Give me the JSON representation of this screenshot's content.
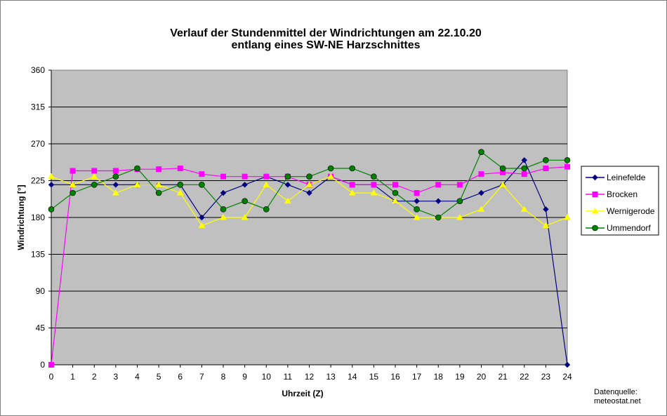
{
  "chart_data": {
    "type": "line",
    "title_lines": [
      "Verlauf der Stundenmittel der Windrichtungen am 22.10.20",
      "entlang eines SW-NE Harzschnittes"
    ],
    "xlabel": "Uhrzeit (Z)",
    "ylabel": "Windrichtung [°]",
    "x": [
      0,
      1,
      2,
      3,
      4,
      5,
      6,
      7,
      8,
      9,
      10,
      11,
      12,
      13,
      14,
      15,
      16,
      17,
      18,
      19,
      20,
      21,
      22,
      23,
      24
    ],
    "xlim": [
      0,
      24
    ],
    "ylim": [
      0,
      360
    ],
    "yticks": [
      0,
      45,
      90,
      135,
      180,
      225,
      270,
      315,
      360
    ],
    "grid": "horizontal",
    "legend_position": "right",
    "source_lines": [
      "Datenquelle:",
      "meteostat.net"
    ],
    "series": [
      {
        "name": "Leinefelde",
        "color": "#000080",
        "marker": "diamond",
        "values": [
          220,
          220,
          220,
          220,
          220,
          220,
          220,
          180,
          210,
          220,
          230,
          220,
          210,
          230,
          220,
          220,
          200,
          200,
          200,
          200,
          210,
          220,
          250,
          190,
          0
        ]
      },
      {
        "name": "Brocken",
        "color": "#FF00FF",
        "marker": "square",
        "values": [
          0,
          237,
          237,
          237,
          239,
          239,
          240,
          233,
          230,
          230,
          230,
          230,
          220,
          230,
          220,
          220,
          220,
          210,
          220,
          220,
          233,
          235,
          233,
          240,
          242
        ]
      },
      {
        "name": "Wernigerode",
        "color": "#FFFF00",
        "marker": "triangle",
        "values": [
          230,
          220,
          230,
          210,
          220,
          220,
          210,
          170,
          180,
          180,
          220,
          200,
          220,
          230,
          210,
          210,
          200,
          180,
          180,
          180,
          190,
          220,
          190,
          170,
          180
        ]
      },
      {
        "name": "Ummendorf",
        "color": "#008000",
        "marker": "circle",
        "values": [
          190,
          210,
          220,
          230,
          240,
          210,
          220,
          220,
          190,
          200,
          190,
          230,
          230,
          240,
          240,
          230,
          210,
          190,
          180,
          200,
          260,
          240,
          240,
          250,
          250
        ]
      }
    ]
  }
}
